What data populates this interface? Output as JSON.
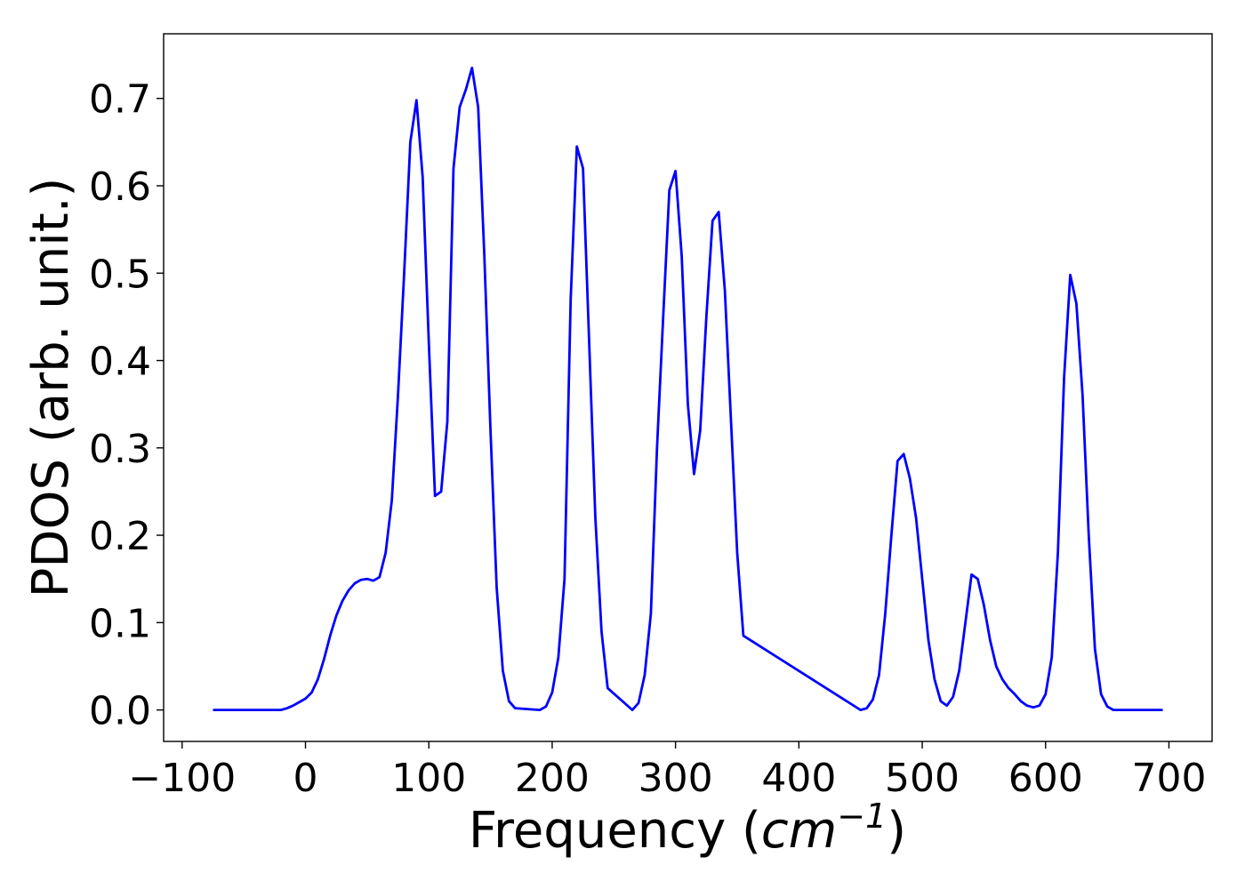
{
  "chart_data": {
    "type": "line",
    "title": "",
    "xlabel_text": "Frequency (",
    "xlabel_unit_base": "cm",
    "xlabel_unit_exp": "−1",
    "xlabel_close": ")",
    "ylabel": "PDOS (arb. unit.)",
    "xlim": [
      -115,
      735
    ],
    "ylim": [
      -0.036,
      0.774
    ],
    "xticks": [
      -100,
      0,
      100,
      200,
      300,
      400,
      500,
      600,
      700
    ],
    "xtick_labels": [
      "−100",
      "0",
      "100",
      "200",
      "300",
      "400",
      "500",
      "600",
      "700"
    ],
    "yticks": [
      0.0,
      0.1,
      0.2,
      0.3,
      0.4,
      0.5,
      0.6,
      0.7
    ],
    "ytick_labels": [
      "0.0",
      "0.1",
      "0.2",
      "0.3",
      "0.4",
      "0.5",
      "0.6",
      "0.7"
    ],
    "grid": false,
    "colors": {
      "line": "#0000ff",
      "axes": "#000000"
    },
    "series": [
      {
        "x": [
          -75,
          -20,
          -15,
          -10,
          -5,
          0,
          5,
          10,
          15,
          20,
          25,
          30,
          35,
          40,
          45,
          50,
          55,
          60,
          65,
          70,
          75,
          80,
          85,
          90,
          95,
          100,
          105,
          110,
          115,
          120,
          125,
          130,
          135,
          140,
          145,
          150,
          155,
          160,
          165,
          170,
          190,
          195,
          200,
          205,
          210,
          215,
          220,
          225,
          230,
          235,
          240,
          245,
          265,
          270,
          275,
          280,
          285,
          290,
          295,
          300,
          305,
          310,
          315,
          320,
          325,
          330,
          335,
          340,
          345,
          350,
          355,
          450,
          455,
          460,
          465,
          470,
          475,
          480,
          485,
          490,
          495,
          500,
          505,
          510,
          515,
          520,
          525,
          530,
          535,
          540,
          545,
          550,
          555,
          560,
          565,
          570,
          575,
          580,
          585,
          590,
          595,
          600,
          605,
          610,
          615,
          620,
          625,
          630,
          635,
          640,
          645,
          650,
          655,
          695
        ],
        "y": [
          0.0,
          0.0,
          0.002,
          0.005,
          0.009,
          0.013,
          0.02,
          0.035,
          0.058,
          0.085,
          0.108,
          0.125,
          0.137,
          0.145,
          0.149,
          0.15,
          0.148,
          0.152,
          0.18,
          0.24,
          0.36,
          0.5,
          0.65,
          0.698,
          0.61,
          0.42,
          0.245,
          0.25,
          0.33,
          0.62,
          0.69,
          0.71,
          0.735,
          0.69,
          0.52,
          0.32,
          0.14,
          0.045,
          0.01,
          0.002,
          0.0,
          0.004,
          0.02,
          0.06,
          0.15,
          0.47,
          0.645,
          0.62,
          0.42,
          0.22,
          0.09,
          0.025,
          0.0,
          0.008,
          0.04,
          0.11,
          0.3,
          0.45,
          0.595,
          0.617,
          0.52,
          0.35,
          0.27,
          0.32,
          0.45,
          0.56,
          0.57,
          0.48,
          0.33,
          0.18,
          0.085,
          0.0,
          0.002,
          0.012,
          0.04,
          0.11,
          0.2,
          0.285,
          0.293,
          0.265,
          0.22,
          0.15,
          0.08,
          0.035,
          0.01,
          0.005,
          0.015,
          0.045,
          0.1,
          0.155,
          0.15,
          0.12,
          0.08,
          0.05,
          0.035,
          0.025,
          0.018,
          0.01,
          0.005,
          0.003,
          0.005,
          0.018,
          0.06,
          0.18,
          0.38,
          0.498,
          0.465,
          0.36,
          0.2,
          0.07,
          0.018,
          0.004,
          0.0,
          0.0
        ]
      }
    ]
  }
}
